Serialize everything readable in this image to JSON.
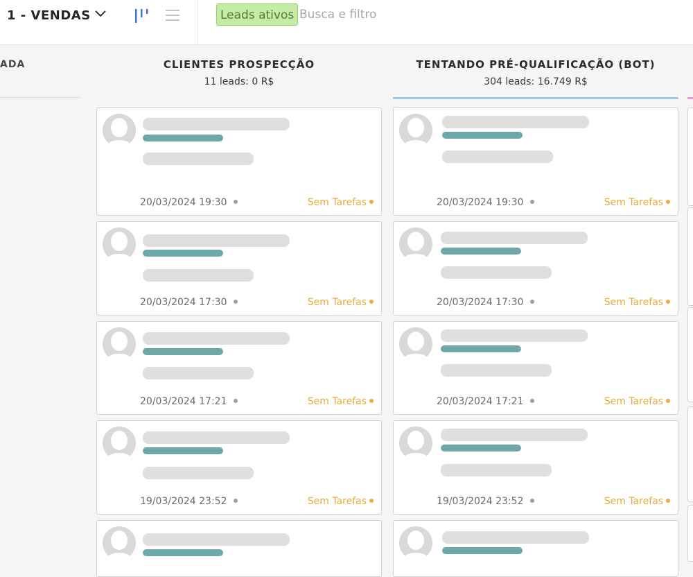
{
  "topbar": {
    "pipeline_title": "1 - VENDAS",
    "view_kanban_icon": "kanban-view-icon",
    "view_list_icon": "list-view-icon",
    "active_filter": "Leads ativos",
    "search_placeholder": "Busca e filtro"
  },
  "colors": {
    "filter_bg": "#c5eba6",
    "placeholder_teal": "#6ea8a9",
    "tasks_orange": "#e9a93a",
    "column_2_accent": "#99c9f2",
    "next_column_accent": "#f09bd2"
  },
  "left_column": {
    "title_fragment": "ADA"
  },
  "columns": [
    {
      "title": "CLIENTES PROSPECÇÃO",
      "summary": "11 leads: 0 R$",
      "cards": [
        {
          "date": "20/03/2024 19:30",
          "tasks": "Sem Tarefas"
        },
        {
          "date": "20/03/2024 17:30",
          "tasks": "Sem Tarefas"
        },
        {
          "date": "20/03/2024 17:21",
          "tasks": "Sem Tarefas"
        },
        {
          "date": "19/03/2024 23:52",
          "tasks": "Sem Tarefas"
        },
        {
          "date": "",
          "tasks": ""
        }
      ]
    },
    {
      "title": "TENTANDO PRÉ-QUALIFICAÇÃO (BOT)",
      "summary": "304 leads: 16.749 R$",
      "cards": [
        {
          "date": "20/03/2024 19:30",
          "tasks": "Sem Tarefas"
        },
        {
          "date": "20/03/2024 17:30",
          "tasks": "Sem Tarefas"
        },
        {
          "date": "20/03/2024 17:21",
          "tasks": "Sem Tarefas"
        },
        {
          "date": "19/03/2024 23:52",
          "tasks": "Sem Tarefas"
        },
        {
          "date": "",
          "tasks": ""
        }
      ]
    }
  ]
}
